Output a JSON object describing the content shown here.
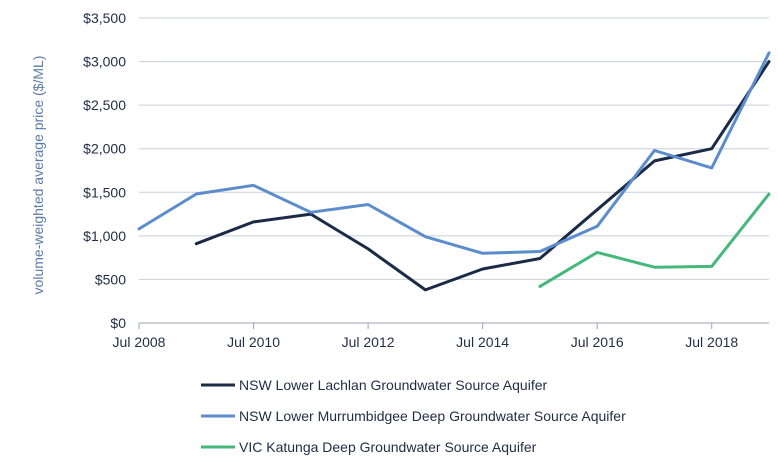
{
  "chart_data": {
    "type": "line",
    "title": "",
    "xlabel": "",
    "ylabel": "volume-weighted average price ($/ML)",
    "x": [
      2008,
      2009,
      2010,
      2011,
      2012,
      2013,
      2014,
      2015,
      2016,
      2017,
      2018,
      2019
    ],
    "xlim": [
      2008,
      2019
    ],
    "ylim": [
      0,
      3500
    ],
    "grid": "horizontal",
    "x_ticks": [
      {
        "value": 2008,
        "label": "Jul 2008"
      },
      {
        "value": 2010,
        "label": "Jul 2010"
      },
      {
        "value": 2012,
        "label": "Jul 2012"
      },
      {
        "value": 2014,
        "label": "Jul 2014"
      },
      {
        "value": 2016,
        "label": "Jul 2016"
      },
      {
        "value": 2018,
        "label": "Jul 2018"
      }
    ],
    "y_ticks": [
      {
        "value": 0,
        "label": "$0"
      },
      {
        "value": 500,
        "label": "$500"
      },
      {
        "value": 1000,
        "label": "$1,000"
      },
      {
        "value": 1500,
        "label": "$1,500"
      },
      {
        "value": 2000,
        "label": "$2,000"
      },
      {
        "value": 2500,
        "label": "$2,500"
      },
      {
        "value": 3000,
        "label": "$3,000"
      },
      {
        "value": 3500,
        "label": "$3,500"
      }
    ],
    "legend_position": "bottom",
    "series": [
      {
        "name": "NSW Lower Lachlan Groundwater Source Aquifer",
        "color": "#1b2a47",
        "values": [
          null,
          910,
          1160,
          1250,
          850,
          380,
          620,
          740,
          1300,
          1860,
          2000,
          3000
        ]
      },
      {
        "name": "NSW Lower Murrumbidgee Deep Groundwater Source Aquifer",
        "color": "#5b8ccc",
        "values": [
          1080,
          1480,
          1580,
          1270,
          1360,
          990,
          800,
          820,
          1110,
          1980,
          1780,
          3100
        ]
      },
      {
        "name": "VIC Katunga Deep Groundwater Source Aquifer",
        "color": "#45b87a",
        "values": [
          null,
          null,
          null,
          null,
          null,
          null,
          null,
          420,
          810,
          640,
          650,
          1480
        ]
      }
    ]
  }
}
